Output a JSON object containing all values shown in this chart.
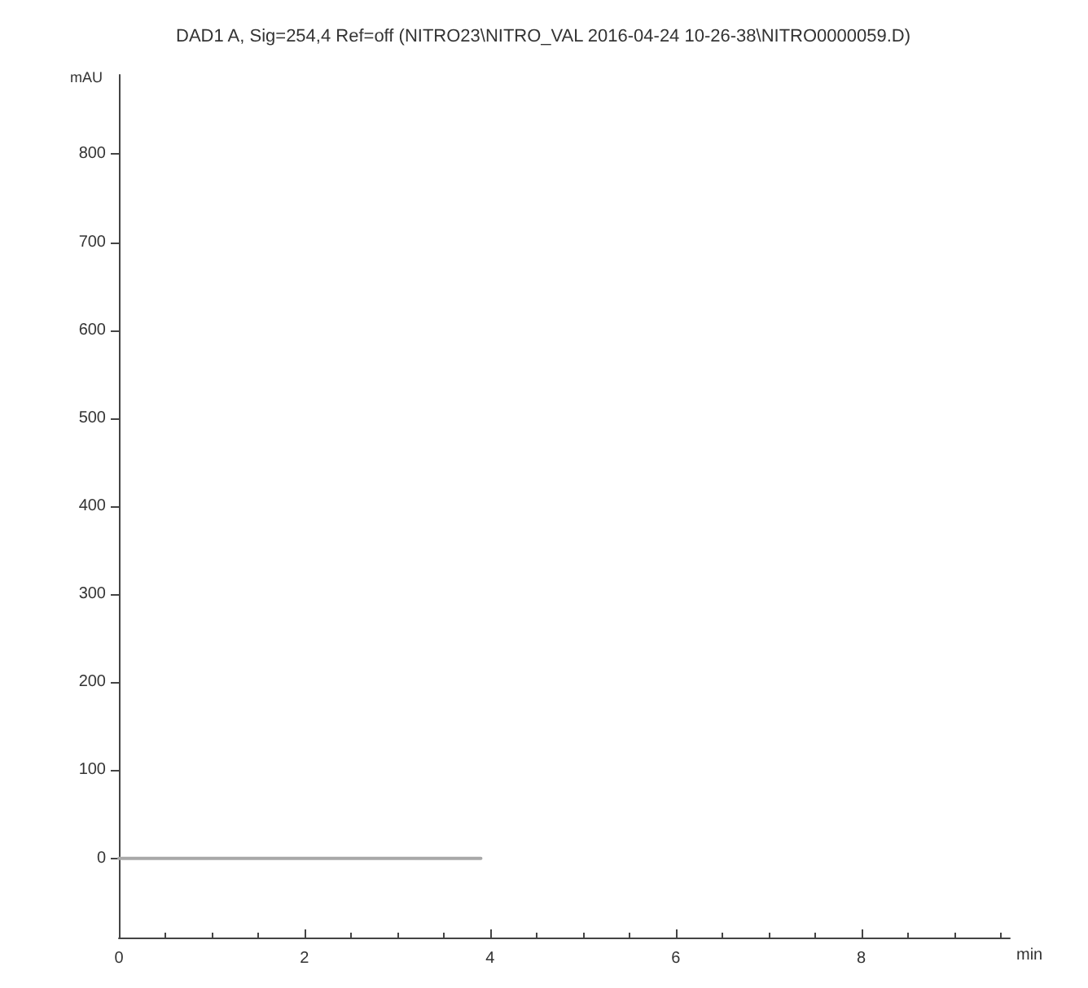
{
  "chart_data": {
    "type": "line",
    "title": "DAD1 A, Sig=254,4 Ref=off (NITRO23\\NITRO_VAL 2016-04-24 10-26-38\\NITRO0000059.D)",
    "xlabel": "min",
    "ylabel": "mAU",
    "x": [
      0,
      3.9
    ],
    "series": [
      {
        "color": "#a8a8a8",
        "values": [
          0,
          0
        ]
      }
    ],
    "xlim": [
      0,
      9.6
    ],
    "xticks": [
      0,
      2,
      4,
      6,
      8
    ],
    "ylim": [
      -90,
      890
    ],
    "yticks": [
      0,
      100,
      200,
      300,
      400,
      500,
      600,
      700,
      800
    ],
    "grid": false,
    "marker": "none",
    "line_style": "solid"
  }
}
